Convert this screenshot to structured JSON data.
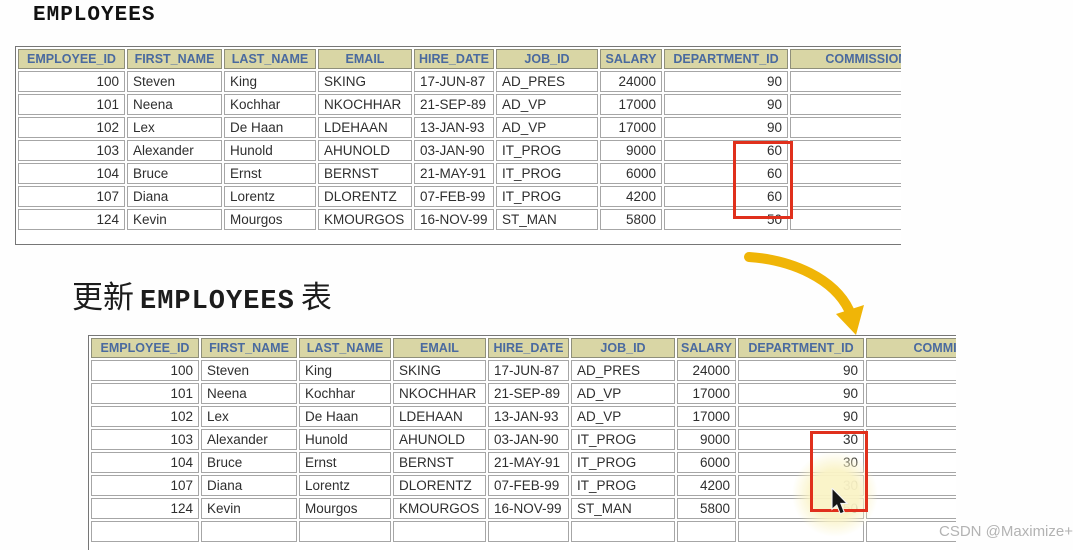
{
  "top_section": {
    "title": "EMPLOYEES"
  },
  "middle_section": {
    "heading_prefix": "更新",
    "heading_table": "EMPLOYEES",
    "heading_suffix": "表"
  },
  "top_table": {
    "headers": [
      "EMPLOYEE_ID",
      "FIRST_NAME",
      "LAST_NAME",
      "EMAIL",
      "HIRE_DATE",
      "JOB_ID",
      "SALARY",
      "DEPARTMENT_ID",
      "COMMISSION_P"
    ],
    "rows": [
      [
        "100",
        "Steven",
        "King",
        "SKING",
        "17-JUN-87",
        "AD_PRES",
        "24000",
        "90",
        ""
      ],
      [
        "101",
        "Neena",
        "Kochhar",
        "NKOCHHAR",
        "21-SEP-89",
        "AD_VP",
        "17000",
        "90",
        ""
      ],
      [
        "102",
        "Lex",
        "De Haan",
        "LDEHAAN",
        "13-JAN-93",
        "AD_VP",
        "17000",
        "90",
        ""
      ],
      [
        "103",
        "Alexander",
        "Hunold",
        "AHUNOLD",
        "03-JAN-90",
        "IT_PROG",
        "9000",
        "60",
        ""
      ],
      [
        "104",
        "Bruce",
        "Ernst",
        "BERNST",
        "21-MAY-91",
        "IT_PROG",
        "6000",
        "60",
        ""
      ],
      [
        "107",
        "Diana",
        "Lorentz",
        "DLORENTZ",
        "07-FEB-99",
        "IT_PROG",
        "4200",
        "60",
        ""
      ],
      [
        "124",
        "Kevin",
        "Mourgos",
        "KMOURGOS",
        "16-NOV-99",
        "ST_MAN",
        "5800",
        "50",
        ""
      ]
    ],
    "highlighted_value": "60",
    "highlighted_employee_ids": [
      "103",
      "104",
      "107"
    ],
    "partial_row": false
  },
  "bottom_table": {
    "headers": [
      "EMPLOYEE_ID",
      "FIRST_NAME",
      "LAST_NAME",
      "EMAIL",
      "HIRE_DATE",
      "JOB_ID",
      "SALARY",
      "DEPARTMENT_ID",
      "COMMISSIO"
    ],
    "rows": [
      [
        "100",
        "Steven",
        "King",
        "SKING",
        "17-JUN-87",
        "AD_PRES",
        "24000",
        "90",
        ""
      ],
      [
        "101",
        "Neena",
        "Kochhar",
        "NKOCHHAR",
        "21-SEP-89",
        "AD_VP",
        "17000",
        "90",
        ""
      ],
      [
        "102",
        "Lex",
        "De Haan",
        "LDEHAAN",
        "13-JAN-93",
        "AD_VP",
        "17000",
        "90",
        ""
      ],
      [
        "103",
        "Alexander",
        "Hunold",
        "AHUNOLD",
        "03-JAN-90",
        "IT_PROG",
        "9000",
        "30",
        ""
      ],
      [
        "104",
        "Bruce",
        "Ernst",
        "BERNST",
        "21-MAY-91",
        "IT_PROG",
        "6000",
        "30",
        ""
      ],
      [
        "107",
        "Diana",
        "Lorentz",
        "DLORENTZ",
        "07-FEB-99",
        "IT_PROG",
        "4200",
        "30",
        ""
      ],
      [
        "124",
        "Kevin",
        "Mourgos",
        "KMOURGOS",
        "16-NOV-99",
        "ST_MAN",
        "5800",
        "50",
        ""
      ]
    ],
    "highlighted_value": "30",
    "highlighted_employee_ids": [
      "103",
      "104",
      "107"
    ],
    "partial_row": true
  },
  "watermark": {
    "text": "CSDN @Maximize+"
  },
  "colors": {
    "header_bg": "#d9d6a5",
    "header_text": "#4a6a9f",
    "highlight_box": "#e0301c",
    "arrow": "#f0b507",
    "cursor_halo": "#faf3c6",
    "watermark_text": "#b3b3b3"
  }
}
